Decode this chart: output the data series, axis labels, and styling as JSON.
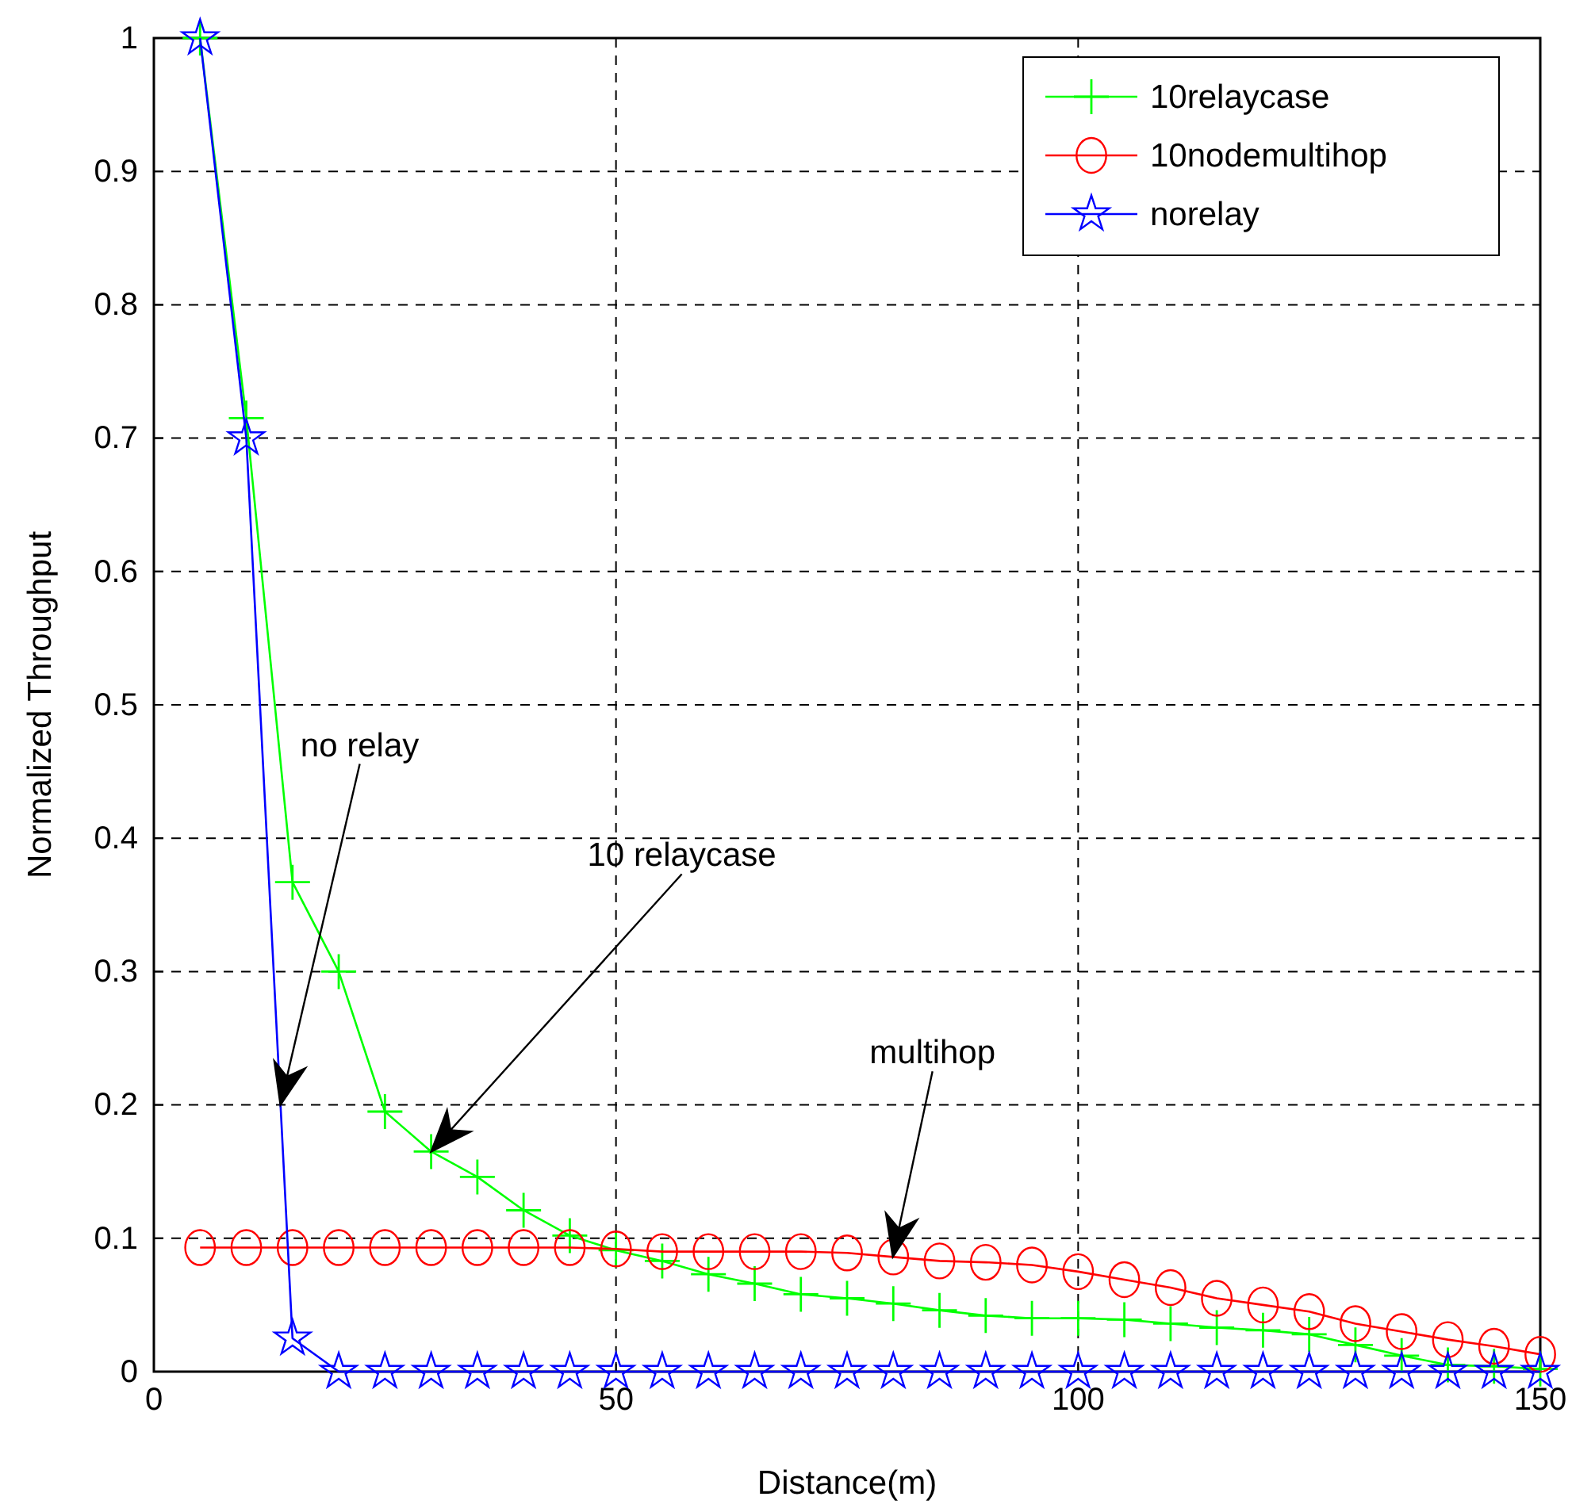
{
  "chart_data": {
    "type": "line",
    "xlabel": "Distance(m)",
    "ylabel": "Normalized Throughput",
    "x": [
      5,
      10,
      15,
      20,
      25,
      30,
      35,
      40,
      45,
      50,
      55,
      60,
      65,
      70,
      75,
      80,
      85,
      90,
      95,
      100,
      105,
      110,
      115,
      120,
      125,
      130,
      135,
      140,
      145,
      150
    ],
    "series": [
      {
        "name": "10relaycase",
        "color": "#00ff00",
        "marker": "cross",
        "values": [
          1.0,
          0.715,
          0.367,
          0.3,
          0.195,
          0.165,
          0.146,
          0.121,
          0.102,
          0.091,
          0.083,
          0.073,
          0.066,
          0.058,
          0.055,
          0.051,
          0.046,
          0.042,
          0.04,
          0.04,
          0.039,
          0.036,
          0.033,
          0.031,
          0.028,
          0.02,
          0.012,
          0.005,
          0.004,
          0.002
        ]
      },
      {
        "name": "10nodemultihop",
        "color": "#ff0000",
        "marker": "circle",
        "values": [
          0.093,
          0.093,
          0.093,
          0.093,
          0.093,
          0.093,
          0.093,
          0.093,
          0.093,
          0.092,
          0.09,
          0.09,
          0.09,
          0.09,
          0.089,
          0.086,
          0.083,
          0.082,
          0.08,
          0.075,
          0.069,
          0.063,
          0.055,
          0.05,
          0.045,
          0.036,
          0.03,
          0.024,
          0.019,
          0.013
        ]
      },
      {
        "name": "norelay",
        "color": "#0000ff",
        "marker": "star",
        "values": [
          1.0,
          0.7,
          0.025,
          0,
          0,
          0,
          0,
          0,
          0,
          0,
          0,
          0,
          0,
          0,
          0,
          0,
          0,
          0,
          0,
          0,
          0,
          0,
          0,
          0,
          0,
          0,
          0,
          0,
          0,
          0
        ]
      }
    ],
    "xlim": [
      0,
      150
    ],
    "xticks": [
      0,
      50,
      100,
      150
    ],
    "ylim": [
      0,
      1
    ],
    "yticks": [
      0,
      0.1,
      0.2,
      0.3,
      0.4,
      0.5,
      0.6,
      0.7,
      0.8,
      0.9,
      1
    ],
    "grid": true,
    "legend": "top right",
    "line_style": "solid",
    "annotations": [
      "no relay",
      "10 relaycase",
      "multihop"
    ]
  }
}
